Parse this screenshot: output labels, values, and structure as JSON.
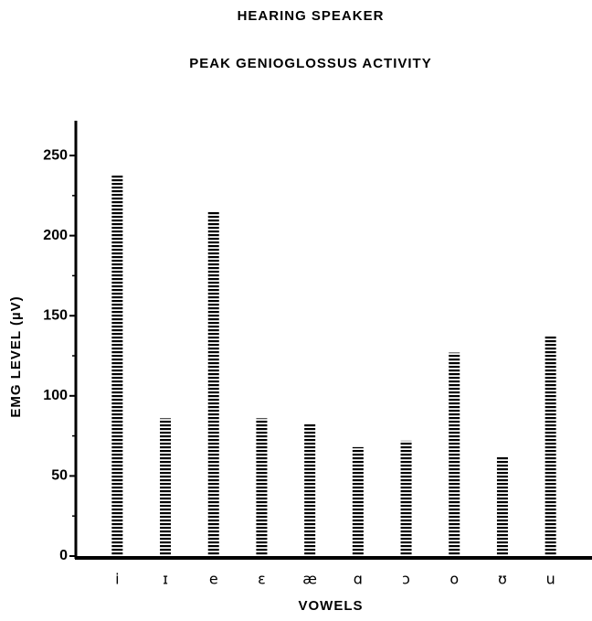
{
  "chart_data": {
    "type": "bar",
    "title": "HEARING SPEAKER",
    "subtitle": "PEAK GENIOGLOSSUS ACTIVITY",
    "y_label": "EMG LEVEL (µV)",
    "x_label": "VOWELS",
    "categories": [
      "i",
      "ɪ",
      "e",
      "ɛ",
      "æ",
      "ɑ",
      "ɔ",
      "o",
      "ʊ",
      "u"
    ],
    "values": [
      238,
      86,
      215,
      86,
      83,
      68,
      72,
      127,
      62,
      137
    ],
    "color": "#000000",
    "ylim": [
      0,
      270
    ],
    "yticks": [
      0,
      50,
      100,
      150,
      200,
      250
    ],
    "yticks_minor": [
      25,
      75,
      125,
      175,
      225
    ],
    "grid": false
  }
}
